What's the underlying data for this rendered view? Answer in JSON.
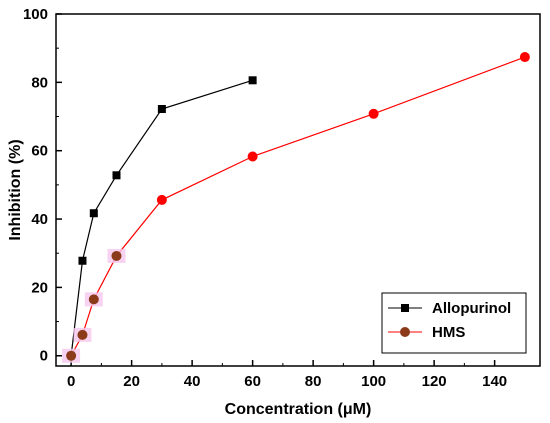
{
  "chart_data": {
    "type": "line",
    "title": "",
    "xlabel": "Concentration (μM)",
    "ylabel": "Inhibition (%)",
    "xlim": [
      -5,
      155
    ],
    "ylim": [
      -3,
      100
    ],
    "x_ticks": [
      0,
      20,
      40,
      60,
      80,
      100,
      120,
      140
    ],
    "y_ticks": [
      0,
      20,
      40,
      60,
      80,
      100
    ],
    "grid": false,
    "legend_position": "bottom-right",
    "series": [
      {
        "name": "Allopurinol",
        "marker": "square",
        "color": "#000000",
        "x": [
          0,
          3.75,
          7.5,
          15,
          30,
          60
        ],
        "y": [
          0,
          27.8,
          41.7,
          52.8,
          72.2,
          80.6
        ]
      },
      {
        "name": "HMS",
        "marker": "circle",
        "color": "#ff0000",
        "marker_color": "#8b3a1a",
        "x": [
          0,
          3.75,
          7.5,
          15,
          30,
          60,
          100,
          150
        ],
        "y": [
          0,
          6.1,
          16.5,
          29.2,
          45.6,
          58.3,
          70.8,
          87.4
        ]
      }
    ]
  }
}
